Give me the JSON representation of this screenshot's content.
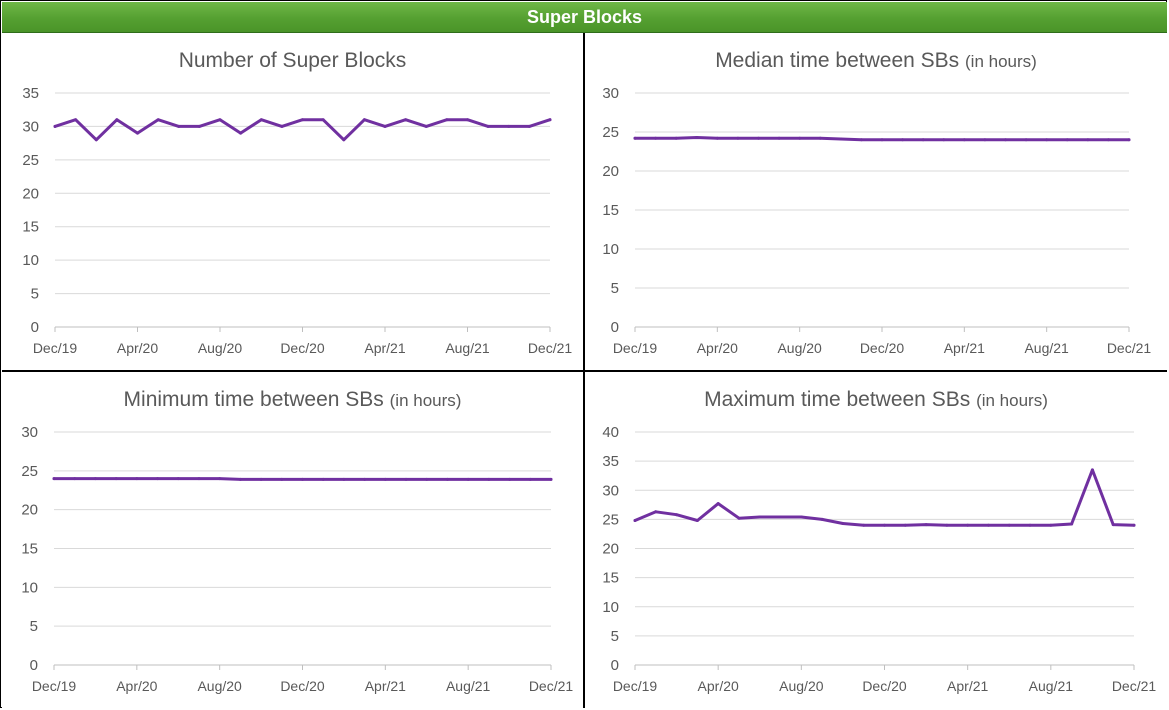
{
  "header": {
    "title": "Super Blocks"
  },
  "colors": {
    "banner": "#56a132",
    "line": "#7030a0",
    "grid": "#d9d9d9",
    "axis_text": "#595959"
  },
  "chart_data": [
    {
      "type": "line",
      "title": "Number of Super Blocks",
      "title_suffix": "",
      "x_tick_labels": [
        "Dec/19",
        "Apr/20",
        "Aug/20",
        "Dec/20",
        "Apr/21",
        "Aug/21",
        "Dec/21"
      ],
      "ylim": [
        0,
        35
      ],
      "yticks": [
        0,
        5,
        10,
        15,
        20,
        25,
        30,
        35
      ],
      "grid": true,
      "x": [
        "Dec/19",
        "Jan/20",
        "Feb/20",
        "Mar/20",
        "Apr/20",
        "May/20",
        "Jun/20",
        "Jul/20",
        "Aug/20",
        "Sep/20",
        "Oct/20",
        "Nov/20",
        "Dec/20",
        "Jan/21",
        "Feb/21",
        "Mar/21",
        "Apr/21",
        "May/21",
        "Jun/21",
        "Jul/21",
        "Aug/21",
        "Sep/21",
        "Oct/21",
        "Nov/21",
        "Dec/21"
      ],
      "series": [
        {
          "values": [
            30,
            31,
            28,
            31,
            29,
            31,
            30,
            30,
            31,
            29,
            31,
            30,
            31,
            31,
            28,
            31,
            30,
            31,
            30,
            31,
            31,
            30,
            30,
            30,
            31
          ]
        }
      ]
    },
    {
      "type": "line",
      "title": "Median time between SBs",
      "title_suffix": "(in hours)",
      "x_tick_labels": [
        "Dec/19",
        "Apr/20",
        "Aug/20",
        "Dec/20",
        "Apr/21",
        "Aug/21",
        "Dec/21"
      ],
      "ylim": [
        0,
        30
      ],
      "yticks": [
        0,
        5,
        10,
        15,
        20,
        25,
        30
      ],
      "grid": true,
      "x": [
        "Dec/19",
        "Jan/20",
        "Feb/20",
        "Mar/20",
        "Apr/20",
        "May/20",
        "Jun/20",
        "Jul/20",
        "Aug/20",
        "Sep/20",
        "Oct/20",
        "Nov/20",
        "Dec/20",
        "Jan/21",
        "Feb/21",
        "Mar/21",
        "Apr/21",
        "May/21",
        "Jun/21",
        "Jul/21",
        "Aug/21",
        "Sep/21",
        "Oct/21",
        "Nov/21",
        "Dec/21"
      ],
      "series": [
        {
          "values": [
            24.2,
            24.2,
            24.2,
            24.3,
            24.2,
            24.2,
            24.2,
            24.2,
            24.2,
            24.2,
            24.1,
            24.0,
            24.0,
            24.0,
            24.0,
            24.0,
            24.0,
            24.0,
            24.0,
            24.0,
            24.0,
            24.0,
            24.0,
            24.0,
            24.0
          ]
        }
      ]
    },
    {
      "type": "line",
      "title": "Minimum time between SBs",
      "title_suffix": "(in hours)",
      "x_tick_labels": [
        "Dec/19",
        "Apr/20",
        "Aug/20",
        "Dec/20",
        "Apr/21",
        "Aug/21",
        "Dec/21"
      ],
      "ylim": [
        0,
        30
      ],
      "yticks": [
        0,
        5,
        10,
        15,
        20,
        25,
        30
      ],
      "grid": true,
      "x": [
        "Dec/19",
        "Jan/20",
        "Feb/20",
        "Mar/20",
        "Apr/20",
        "May/20",
        "Jun/20",
        "Jul/20",
        "Aug/20",
        "Sep/20",
        "Oct/20",
        "Nov/20",
        "Dec/20",
        "Jan/21",
        "Feb/21",
        "Mar/21",
        "Apr/21",
        "May/21",
        "Jun/21",
        "Jul/21",
        "Aug/21",
        "Sep/21",
        "Oct/21",
        "Nov/21",
        "Dec/21"
      ],
      "series": [
        {
          "values": [
            24.0,
            24.0,
            24.0,
            24.0,
            24.0,
            24.0,
            24.0,
            24.0,
            24.0,
            23.9,
            23.9,
            23.9,
            23.9,
            23.9,
            23.9,
            23.9,
            23.9,
            23.9,
            23.9,
            23.9,
            23.9,
            23.9,
            23.9,
            23.9,
            23.9
          ]
        }
      ]
    },
    {
      "type": "line",
      "title": "Maximum time  between SBs",
      "title_suffix": "(in hours)",
      "x_tick_labels": [
        "Dec/19",
        "Apr/20",
        "Aug/20",
        "Dec/20",
        "Apr/21",
        "Aug/21",
        "Dec/21"
      ],
      "ylim": [
        0,
        40
      ],
      "yticks": [
        0,
        5,
        10,
        15,
        20,
        25,
        30,
        35,
        40
      ],
      "grid": true,
      "x": [
        "Dec/19",
        "Jan/20",
        "Feb/20",
        "Mar/20",
        "Apr/20",
        "May/20",
        "Jun/20",
        "Jul/20",
        "Aug/20",
        "Sep/20",
        "Oct/20",
        "Nov/20",
        "Dec/20",
        "Jan/21",
        "Feb/21",
        "Mar/21",
        "Apr/21",
        "May/21",
        "Jun/21",
        "Jul/21",
        "Aug/21",
        "Sep/21",
        "Oct/21",
        "Nov/21",
        "Dec/21"
      ],
      "series": [
        {
          "values": [
            24.8,
            26.3,
            25.8,
            24.8,
            27.7,
            25.2,
            25.4,
            25.4,
            25.4,
            25.0,
            24.3,
            24.0,
            24.0,
            24.0,
            24.1,
            24.0,
            24.0,
            24.0,
            24.0,
            24.0,
            24.0,
            24.2,
            33.5,
            24.1,
            24.0
          ]
        }
      ]
    }
  ]
}
